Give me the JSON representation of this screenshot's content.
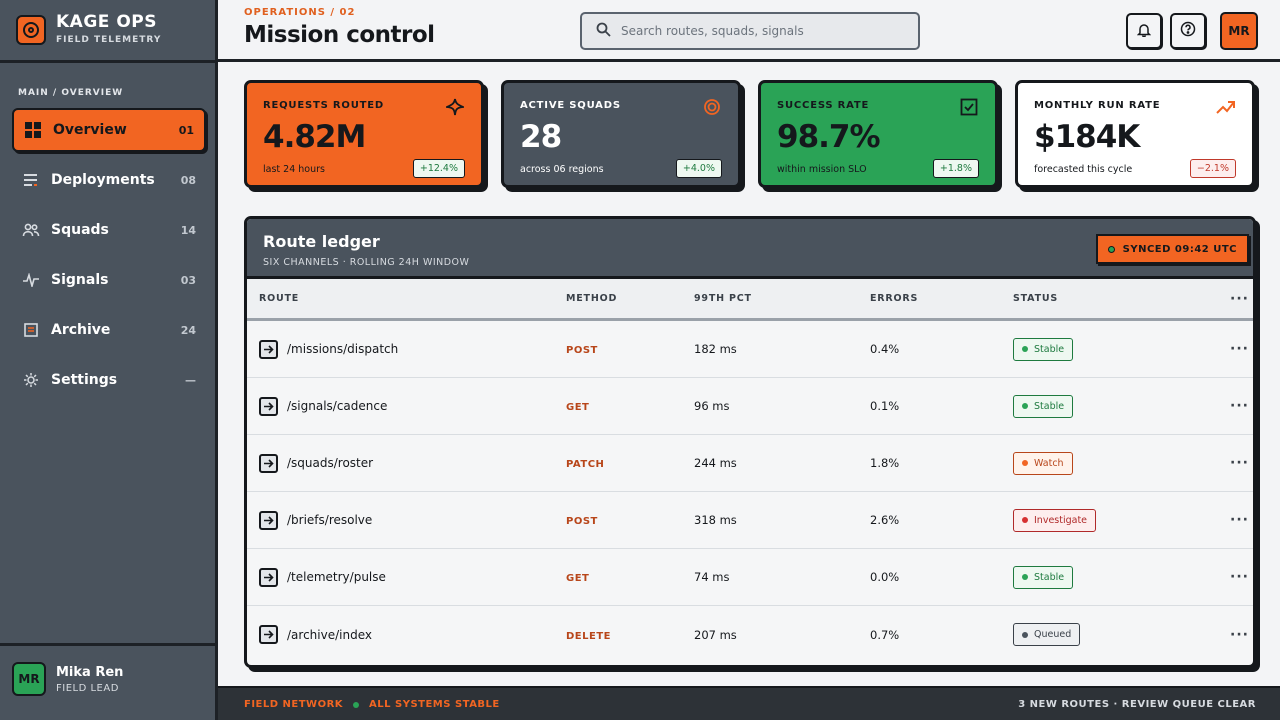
{
  "brand": {
    "title": "KAGE OPS",
    "subtitle": "FIELD TELEMETRY"
  },
  "nav": {
    "section": "MAIN / OVERVIEW",
    "items": [
      {
        "label": "Overview",
        "count": "01",
        "icon": "grid-icon"
      },
      {
        "label": "Deployments",
        "count": "08",
        "icon": "list-icon"
      },
      {
        "label": "Squads",
        "count": "14",
        "icon": "users-icon"
      },
      {
        "label": "Signals",
        "count": "03",
        "icon": "pulse-icon"
      },
      {
        "label": "Archive",
        "count": "24",
        "icon": "archive-icon"
      },
      {
        "label": "Settings",
        "count": "—",
        "icon": "gear-icon"
      }
    ]
  },
  "user": {
    "initials": "MR",
    "name": "Mika Ren",
    "role": "FIELD LEAD"
  },
  "header": {
    "breadcrumb": "OPERATIONS / 02",
    "title": "Mission control",
    "search_placeholder": "Search routes, squads, signals",
    "avatar_initials": "MR"
  },
  "kpis": [
    {
      "label": "REQUESTS ROUTED",
      "value": "4.82M",
      "sub": "last 24 hours",
      "delta": "+12.4%",
      "bg": "#f26522"
    },
    {
      "label": "ACTIVE SQUADS",
      "value": "28",
      "sub": "across 06 regions",
      "delta": "+4.0%",
      "bg": "#4a535d"
    },
    {
      "label": "SUCCESS RATE",
      "value": "98.7%",
      "sub": "within mission SLO",
      "delta": "+1.8%",
      "bg": "#2aa356"
    },
    {
      "label": "MONTHLY RUN RATE",
      "value": "$184K",
      "sub": "forecasted this cycle",
      "delta": "−2.1%",
      "bg": "#ffffff"
    }
  ],
  "ledger": {
    "title": "Route ledger",
    "subtitle": "SIX CHANNELS · ROLLING 24H WINDOW",
    "synced": "SYNCED 09:42 UTC",
    "columns": {
      "route": "ROUTE",
      "method": "METHOD",
      "pct": "99TH PCT",
      "errors": "ERRORS",
      "status": "STATUS"
    },
    "rows": [
      {
        "route": "/missions/dispatch",
        "method": "POST",
        "pct": "182 ms",
        "errors": "0.4%",
        "status": "Stable"
      },
      {
        "route": "/signals/cadence",
        "method": "GET",
        "pct": "96 ms",
        "errors": "0.1%",
        "status": "Stable"
      },
      {
        "route": "/squads/roster",
        "method": "PATCH",
        "pct": "244 ms",
        "errors": "1.8%",
        "status": "Watch"
      },
      {
        "route": "/briefs/resolve",
        "method": "POST",
        "pct": "318 ms",
        "errors": "2.6%",
        "status": "Investigate"
      },
      {
        "route": "/telemetry/pulse",
        "method": "GET",
        "pct": "74 ms",
        "errors": "0.0%",
        "status": "Stable"
      },
      {
        "route": "/archive/index",
        "method": "DELETE",
        "pct": "207 ms",
        "errors": "0.7%",
        "status": "Queued"
      }
    ]
  },
  "footer": {
    "network": "FIELD NETWORK",
    "systems": "ALL SYSTEMS STABLE",
    "right": "3 NEW ROUTES · REVIEW QUEUE CLEAR"
  },
  "colors": {
    "accent": "#f26522",
    "slate": "#4a535d",
    "success": "#2aa356",
    "ink": "#15181c"
  }
}
